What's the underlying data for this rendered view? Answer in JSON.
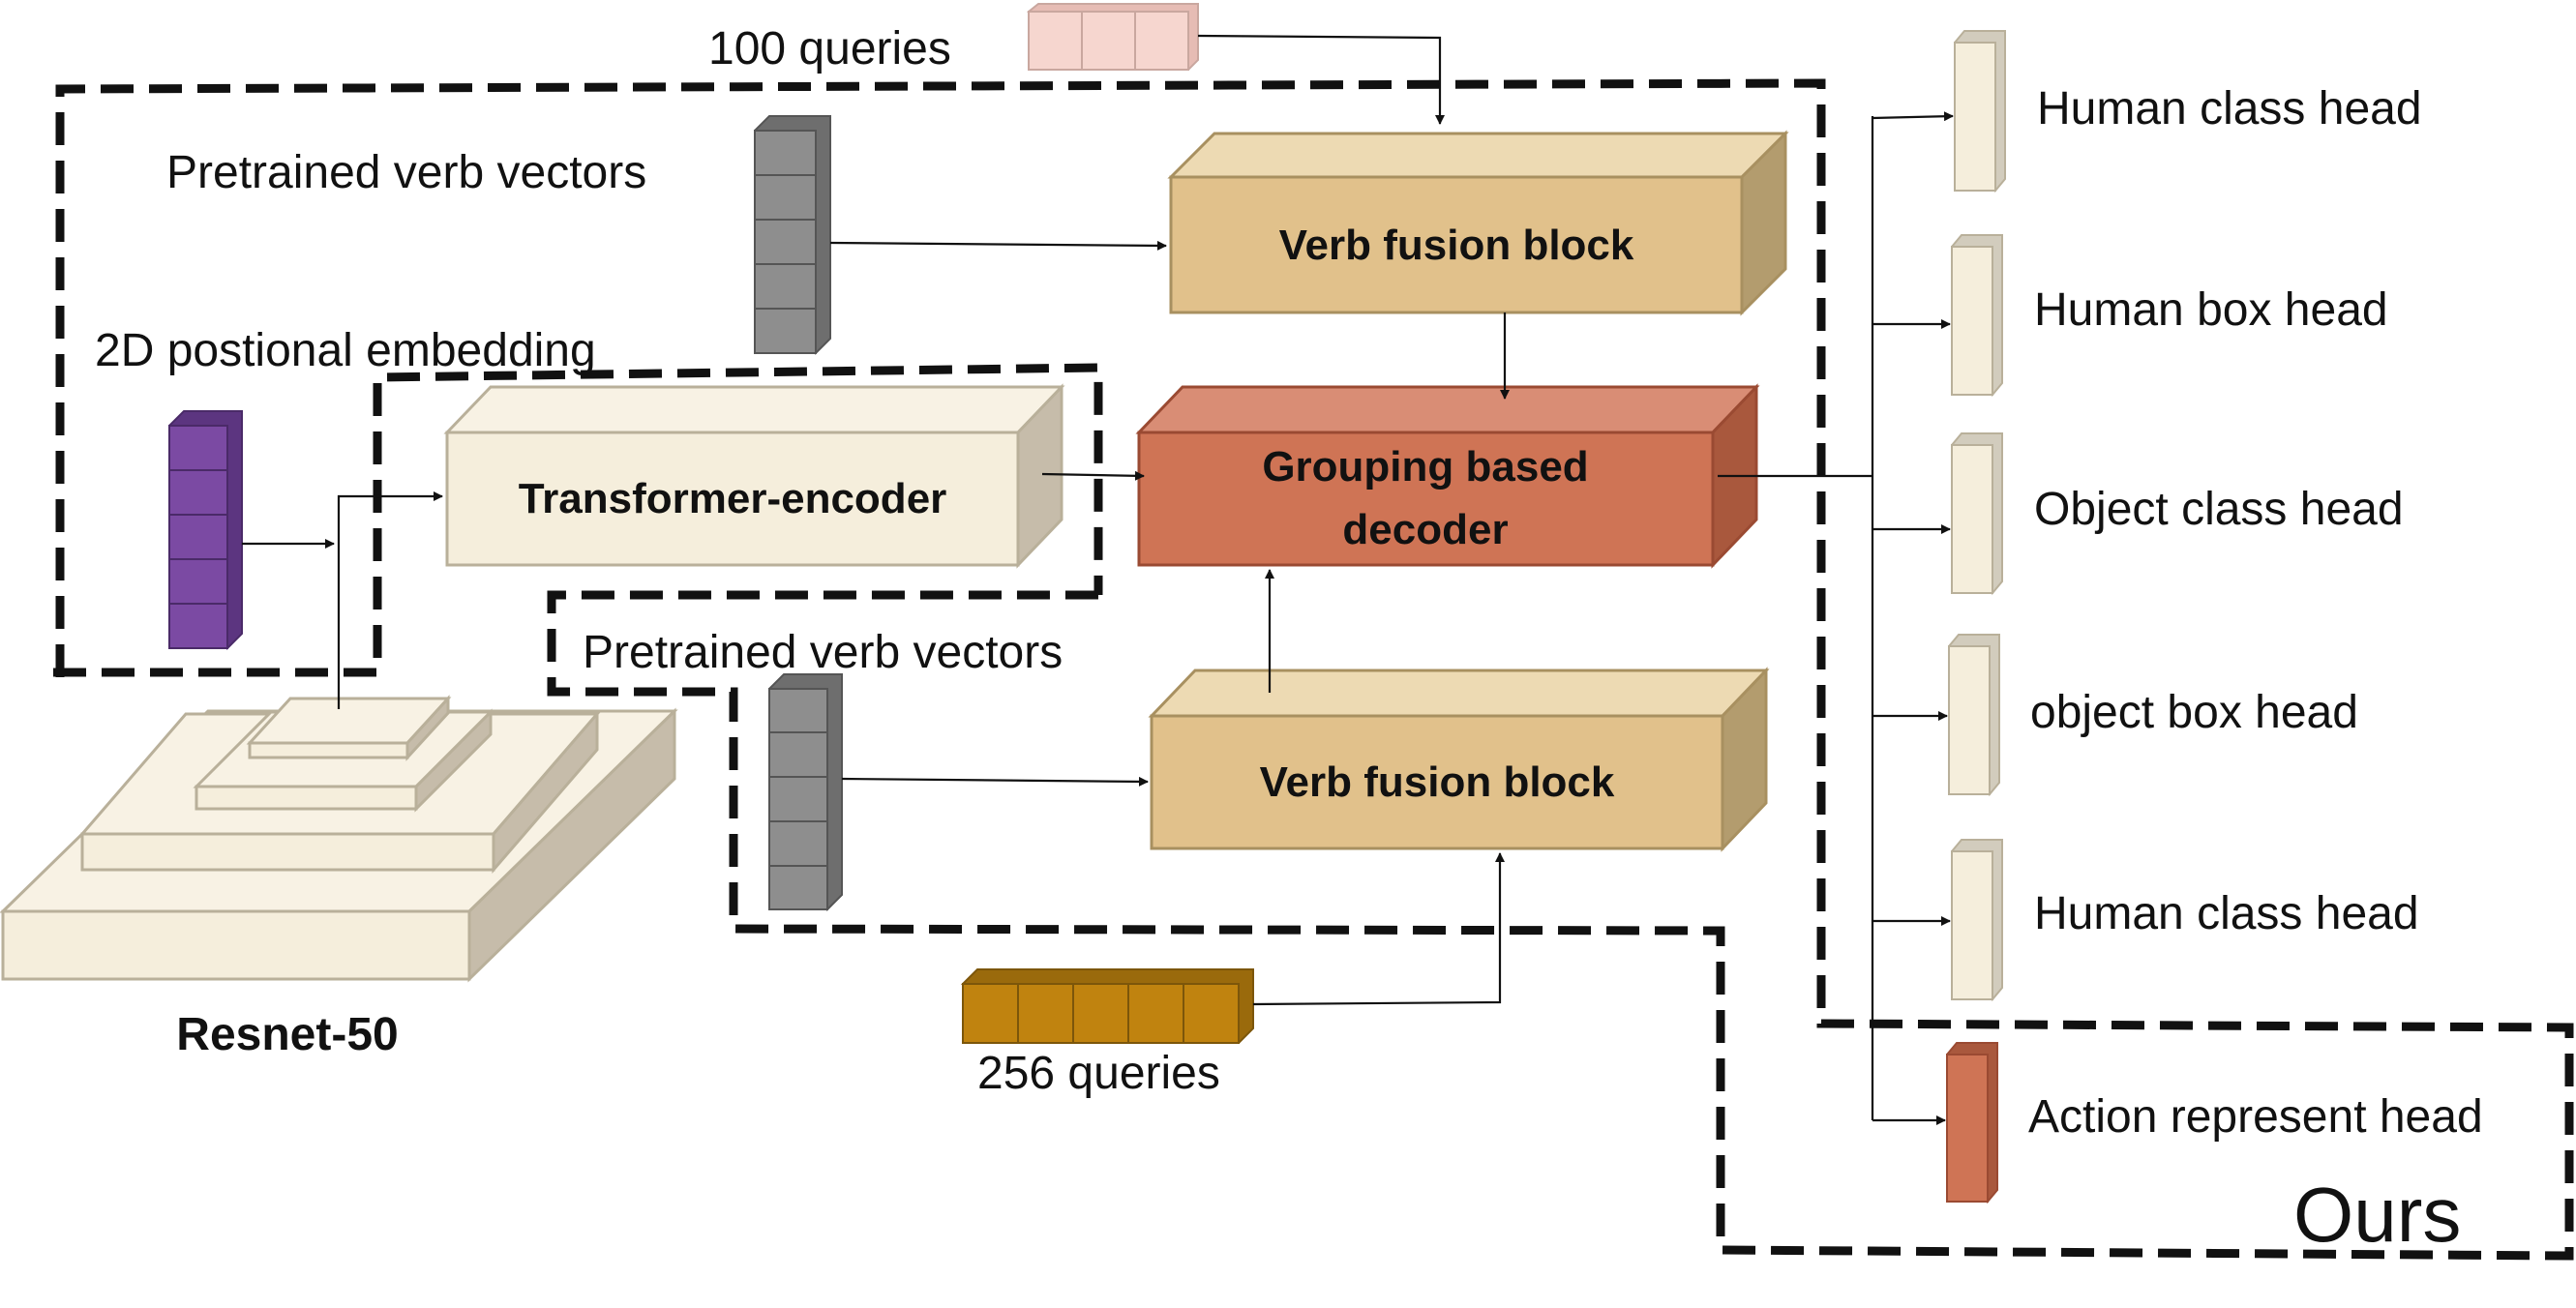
{
  "labels": {
    "queries_top": "100 queries",
    "verb_vectors_top": "Pretrained verb vectors",
    "pos_embedding": "2D postional embedding",
    "verb_vectors_bottom": "Pretrained verb vectors",
    "queries_bottom": "256 queries",
    "backbone": "Resnet-50",
    "ours": "Ours"
  },
  "blocks": {
    "verb_fusion_top": "Verb fusion block",
    "encoder": "Transformer-encoder",
    "decoder_line1": "Grouping based",
    "decoder_line2": "decoder",
    "verb_fusion_bottom": "Verb fusion block"
  },
  "heads": [
    "Human class head",
    "Human box head",
    "Object class head",
    "object box head",
    "Human class head",
    "Action represent head"
  ],
  "colors": {
    "cream": "#f5eedc",
    "gold": "#e1c18b",
    "decoder": "#cf7455",
    "gray": "#8e8e8e",
    "purple": "#7b4aa3",
    "orange": "#c0830f",
    "pink": "#f6d6cf"
  }
}
